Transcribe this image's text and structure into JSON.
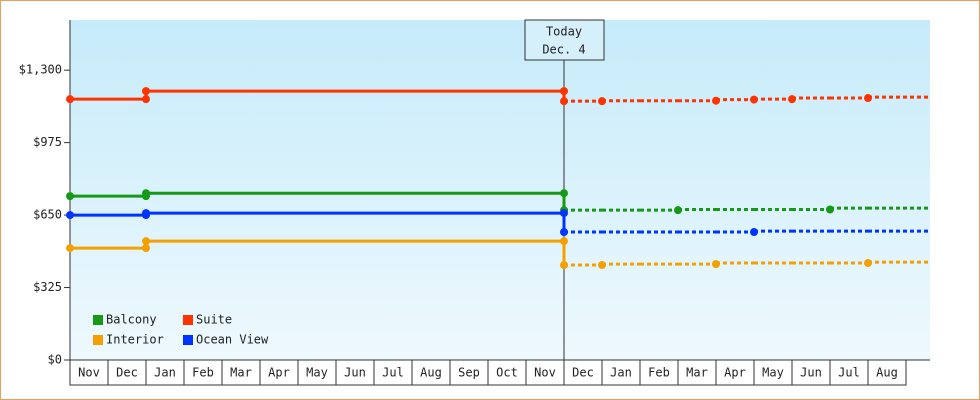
{
  "chart_data": {
    "type": "step-line",
    "today_label": [
      "Today",
      "Dec. 4"
    ],
    "today_index": 13,
    "categories": [
      "Nov",
      "Dec",
      "Jan",
      "Feb",
      "Mar",
      "Apr",
      "May",
      "Jun",
      "Jul",
      "Aug",
      "Sep",
      "Oct",
      "Nov",
      "Dec",
      "Jan",
      "Feb",
      "Mar",
      "Apr",
      "May",
      "Jun",
      "Jul",
      "Aug"
    ],
    "ylim": [
      0,
      1525
    ],
    "yticks": [
      {
        "value": 0,
        "label": "$0"
      },
      {
        "value": 325,
        "label": "$325"
      },
      {
        "value": 650,
        "label": "$650"
      },
      {
        "value": 975,
        "label": "$975"
      },
      {
        "value": 1300,
        "label": "$1,300"
      }
    ],
    "series": [
      {
        "name": "Balcony",
        "color": "#169a16",
        "values": [
          735,
          735,
          748,
          748,
          748,
          748,
          748,
          748,
          748,
          748,
          748,
          748,
          748,
          748,
          null,
          null,
          null,
          null,
          null,
          null,
          null,
          null
        ],
        "forecast": [
          null,
          null,
          null,
          null,
          null,
          null,
          null,
          null,
          null,
          null,
          null,
          null,
          null,
          672,
          672,
          672,
          675,
          675,
          675,
          675,
          681,
          681
        ]
      },
      {
        "name": "Suite",
        "color": "#ff3300",
        "values": [
          1170,
          1170,
          1206,
          1206,
          1206,
          1206,
          1206,
          1206,
          1206,
          1206,
          1206,
          1206,
          1206,
          1206,
          null,
          null,
          null,
          null,
          null,
          null,
          null,
          null
        ],
        "forecast": [
          null,
          null,
          null,
          null,
          null,
          null,
          null,
          null,
          null,
          null,
          null,
          null,
          null,
          1161,
          1163,
          1163,
          1163,
          1168,
          1170,
          1175,
          1175,
          1179
        ]
      },
      {
        "name": "Interior",
        "color": "#f5a000",
        "values": [
          502,
          502,
          533,
          533,
          533,
          533,
          533,
          533,
          533,
          533,
          533,
          533,
          533,
          533,
          null,
          null,
          null,
          null,
          null,
          null,
          null,
          null
        ],
        "forecast": [
          null,
          null,
          null,
          null,
          null,
          null,
          null,
          null,
          null,
          null,
          null,
          null,
          null,
          426,
          430,
          430,
          430,
          435,
          435,
          435,
          435,
          439
        ]
      },
      {
        "name": "Ocean View",
        "color": "#0033ff",
        "values": [
          650,
          650,
          659,
          659,
          659,
          659,
          659,
          659,
          659,
          659,
          659,
          659,
          659,
          659,
          null,
          null,
          null,
          null,
          null,
          null,
          null,
          null
        ],
        "forecast": [
          null,
          null,
          null,
          null,
          null,
          null,
          null,
          null,
          null,
          null,
          null,
          null,
          null,
          574,
          574,
          574,
          574,
          574,
          578,
          578,
          578,
          578
        ]
      }
    ]
  }
}
